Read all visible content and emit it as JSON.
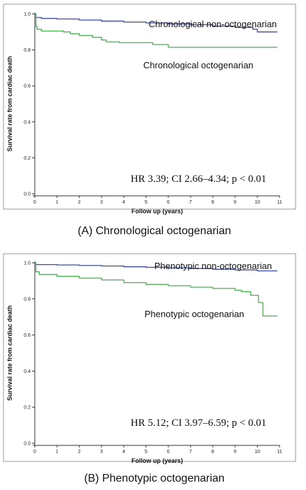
{
  "chart_data": [
    {
      "type": "line",
      "caption": "(A) Chronological octogenarian",
      "xlabel": "Follow up (years)",
      "ylabel": "Survival rate from cardiac death",
      "xlim": [
        0,
        11
      ],
      "ylim": [
        0,
        1
      ],
      "x_ticks": [
        "0",
        "1",
        "2",
        "3",
        "4",
        "5",
        "6",
        "7",
        "8",
        "9",
        "10",
        "11"
      ],
      "y_ticks": [
        "0.0",
        "0.2",
        "0.4",
        "0.6",
        "0.8",
        "1.0"
      ],
      "annotation": "HR 3.39; CI 2.66–4.34; p < 0.01",
      "series": [
        {
          "name": "Chronological non-octogenarian",
          "color": "#3b4a9c",
          "points": [
            [
              0,
              1.0
            ],
            [
              0.05,
              0.98
            ],
            [
              0.3,
              0.975
            ],
            [
              1,
              0.972
            ],
            [
              2,
              0.966
            ],
            [
              3,
              0.96
            ],
            [
              4,
              0.955
            ],
            [
              5,
              0.95
            ],
            [
              6,
              0.945
            ],
            [
              7,
              0.94
            ],
            [
              8,
              0.932
            ],
            [
              9,
              0.925
            ],
            [
              9.8,
              0.915
            ],
            [
              10,
              0.9
            ],
            [
              10.9,
              0.9
            ]
          ]
        },
        {
          "name": "Chronological octogenarian",
          "color": "#44b24c",
          "points": [
            [
              0,
              1.0
            ],
            [
              0.05,
              0.93
            ],
            [
              0.1,
              0.915
            ],
            [
              0.3,
              0.905
            ],
            [
              1.3,
              0.9
            ],
            [
              1.6,
              0.89
            ],
            [
              2.0,
              0.88
            ],
            [
              2.6,
              0.87
            ],
            [
              3.0,
              0.855
            ],
            [
              3.2,
              0.845
            ],
            [
              3.8,
              0.84
            ],
            [
              5.0,
              0.84
            ],
            [
              5.3,
              0.83
            ],
            [
              6.0,
              0.815
            ],
            [
              10.9,
              0.815
            ]
          ]
        }
      ]
    },
    {
      "type": "line",
      "caption": "(B) Phenotypic octogenarian",
      "xlabel": "Follow up (years)",
      "ylabel": "Survival rate from cardiac death",
      "xlim": [
        0,
        11
      ],
      "ylim": [
        0,
        1
      ],
      "x_ticks": [
        "0",
        "1",
        "2",
        "3",
        "4",
        "5",
        "6",
        "7",
        "8",
        "9",
        "10",
        "11"
      ],
      "y_ticks": [
        "0.0",
        "0.2",
        "0.4",
        "0.6",
        "0.8",
        "1.0"
      ],
      "annotation": "HR 5.12; CI 3.97–6.59; p < 0.01",
      "series": [
        {
          "name": "Phenotypic non-octogenarian",
          "color": "#3b4a9c",
          "points": [
            [
              0,
              1.0
            ],
            [
              0.05,
              0.99
            ],
            [
              1,
              0.988
            ],
            [
              2,
              0.985
            ],
            [
              3,
              0.982
            ],
            [
              4,
              0.978
            ],
            [
              5,
              0.975
            ],
            [
              6,
              0.972
            ],
            [
              7,
              0.968
            ],
            [
              8,
              0.964
            ],
            [
              9,
              0.96
            ],
            [
              10,
              0.955
            ],
            [
              10.9,
              0.955
            ]
          ]
        },
        {
          "name": "Phenotypic octogenarian",
          "color": "#44b24c",
          "points": [
            [
              0,
              1.0
            ],
            [
              0.05,
              0.95
            ],
            [
              0.2,
              0.935
            ],
            [
              1,
              0.925
            ],
            [
              2,
              0.915
            ],
            [
              3,
              0.905
            ],
            [
              4,
              0.89
            ],
            [
              5,
              0.88
            ],
            [
              6,
              0.873
            ],
            [
              7,
              0.865
            ],
            [
              8,
              0.858
            ],
            [
              9,
              0.848
            ],
            [
              9.3,
              0.84
            ],
            [
              9.7,
              0.82
            ],
            [
              10.0,
              0.82
            ],
            [
              10.05,
              0.78
            ],
            [
              10.2,
              0.78
            ],
            [
              10.25,
              0.705
            ],
            [
              10.9,
              0.705
            ]
          ]
        }
      ]
    }
  ]
}
